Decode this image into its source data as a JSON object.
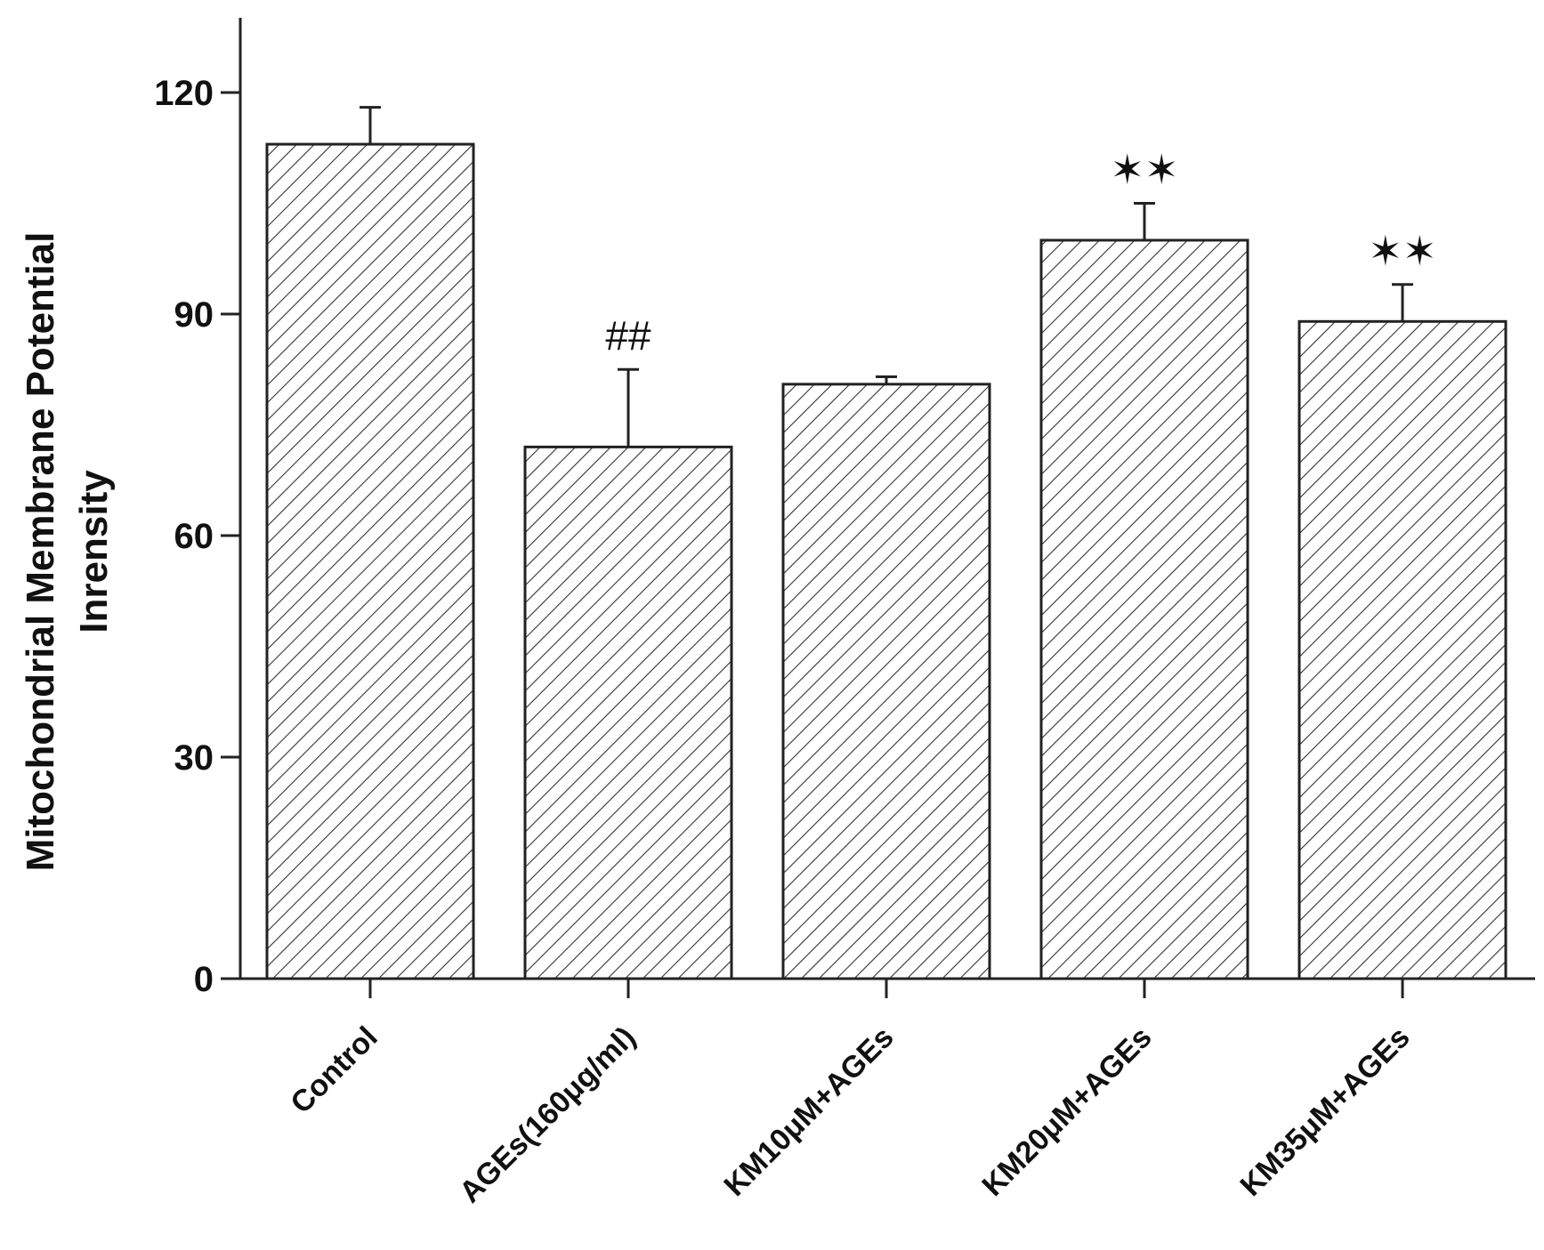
{
  "chart_data": {
    "type": "bar",
    "title": "",
    "ylabel_lines": [
      "Mitochondrial Membrane Potential",
      "Inrensity"
    ],
    "xlabel": "",
    "ylim": [
      0,
      130
    ],
    "yticks": [
      0,
      30,
      60,
      90,
      120
    ],
    "grid": false,
    "categories": [
      "Control",
      "AGEs(160μg/ml)",
      "KM10μM+AGEs",
      "KM20μM+AGEs",
      "KM35μM+AGEs"
    ],
    "values": [
      113,
      72,
      80.5,
      100,
      89
    ],
    "errors": [
      5,
      10.5,
      1,
      5,
      5
    ],
    "annotations": [
      "",
      "##",
      "",
      "✶✶",
      "✶✶"
    ],
    "bar_fill": "hatched",
    "colors": {
      "bar_stroke": "#222222",
      "hatch": "#333333",
      "axis": "#222222",
      "background": "#ffffff"
    }
  }
}
